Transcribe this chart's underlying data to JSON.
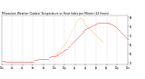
{
  "title": "Milwaukee Weather Outdoor Temperature vs Heat Index per Minute (24 Hours)",
  "title_fontsize": 2.2,
  "bg_color": "#ffffff",
  "plot_bg_color": "#ffffff",
  "grid_color": "#aaaaaa",
  "red_color": "#ff0000",
  "orange_color": "#ffa500",
  "ylim": [
    38,
    92
  ],
  "xlim": [
    0,
    1440
  ],
  "yticks": [
    40,
    50,
    60,
    70,
    80,
    90
  ],
  "xticks": [
    0,
    120,
    240,
    360,
    480,
    600,
    720,
    840,
    960,
    1080,
    1200,
    1320,
    1440
  ],
  "xtick_labels": [
    "12a",
    "2a",
    "4a",
    "6a",
    "8a",
    "10a",
    "12p",
    "2p",
    "4p",
    "6p",
    "8p",
    "10p",
    "12a"
  ],
  "temp_x": [
    0,
    10,
    20,
    30,
    40,
    50,
    60,
    70,
    80,
    90,
    100,
    110,
    120,
    130,
    140,
    150,
    160,
    170,
    180,
    190,
    200,
    210,
    220,
    230,
    240,
    250,
    260,
    270,
    280,
    290,
    300,
    310,
    320,
    330,
    340,
    350,
    360,
    370,
    380,
    390,
    400,
    410,
    420,
    430,
    440,
    450,
    460,
    470,
    480,
    490,
    500,
    510,
    520,
    530,
    540,
    550,
    560,
    570,
    580,
    590,
    600,
    610,
    620,
    630,
    640,
    650,
    660,
    670,
    680,
    690,
    700,
    710,
    720,
    730,
    740,
    750,
    760,
    770,
    780,
    790,
    800,
    810,
    820,
    830,
    840,
    850,
    860,
    870,
    880,
    890,
    900,
    910,
    920,
    930,
    940,
    950,
    960,
    970,
    980,
    990,
    1000,
    1010,
    1020,
    1030,
    1040,
    1050,
    1060,
    1070,
    1080,
    1090,
    1100,
    1110,
    1120,
    1130,
    1140,
    1150,
    1160,
    1170,
    1180,
    1190,
    1200,
    1210,
    1220,
    1230,
    1240,
    1250,
    1260,
    1270,
    1280,
    1290,
    1300,
    1310,
    1320,
    1330,
    1340,
    1350,
    1360,
    1370,
    1380,
    1390,
    1400,
    1410,
    1420,
    1430,
    1440
  ],
  "temp_y": [
    42,
    42,
    42,
    42,
    41,
    41,
    41,
    41,
    41,
    41,
    41,
    41,
    41,
    41,
    41,
    41,
    41,
    41,
    41,
    41,
    41,
    41,
    41,
    41,
    41,
    41,
    41,
    41,
    41,
    41,
    41,
    41,
    41,
    41,
    41,
    41,
    41,
    41,
    43,
    43,
    43,
    43,
    44,
    44,
    44,
    44,
    44,
    44,
    44,
    44,
    44,
    44,
    44,
    44,
    46,
    46,
    47,
    47,
    47,
    47,
    47,
    47,
    48,
    48,
    49,
    49,
    50,
    51,
    51,
    52,
    52,
    53,
    54,
    54,
    55,
    55,
    57,
    58,
    58,
    60,
    61,
    62,
    63,
    64,
    65,
    66,
    67,
    68,
    69,
    70,
    71,
    72,
    73,
    74,
    75,
    76,
    77,
    77,
    78,
    78,
    79,
    79,
    80,
    80,
    81,
    81,
    82,
    82,
    83,
    83,
    84,
    84,
    84,
    84,
    84,
    84,
    84,
    84,
    84,
    84,
    84,
    84,
    84,
    83,
    83,
    83,
    82,
    82,
    81,
    80,
    80,
    79,
    78,
    77,
    76,
    75,
    74,
    73,
    72,
    71,
    70,
    69,
    68,
    67,
    66
  ],
  "hi_x": [
    600,
    610,
    620,
    630,
    640,
    650,
    660,
    670,
    680,
    690,
    700,
    710,
    720,
    730,
    740,
    750,
    760,
    770,
    780,
    790,
    800,
    810,
    820,
    830,
    840,
    850,
    860,
    870,
    880,
    890,
    900,
    910,
    920,
    930,
    940,
    950,
    960,
    970,
    980,
    990,
    1000,
    1010,
    1020,
    1030,
    1040,
    1050,
    1060,
    1070,
    1080,
    1090,
    1100,
    1110,
    1120,
    1130,
    1140,
    1150
  ],
  "hi_y": [
    48,
    48,
    50,
    51,
    51,
    52,
    53,
    54,
    55,
    57,
    58,
    59,
    60,
    62,
    63,
    65,
    67,
    69,
    71,
    73,
    75,
    77,
    79,
    81,
    83,
    85,
    87,
    88,
    89,
    89,
    89,
    89,
    88,
    87,
    86,
    84,
    82,
    81,
    80,
    79,
    78,
    77,
    76,
    75,
    74,
    73,
    72,
    71,
    70,
    69,
    68,
    67,
    66,
    65,
    64,
    63
  ],
  "dot_size": 0.15,
  "linewidth_spine": 0.3
}
